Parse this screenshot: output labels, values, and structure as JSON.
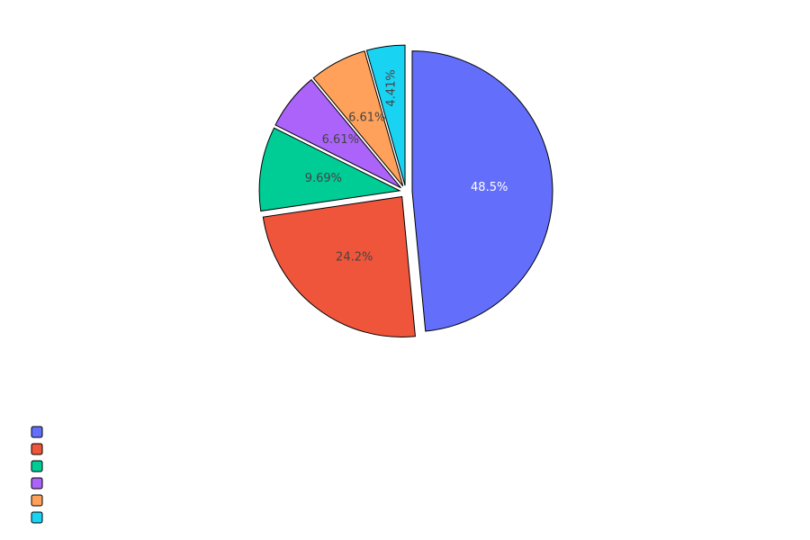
{
  "chart_data": {
    "type": "pie",
    "title": "",
    "direction": "clockwise",
    "start_angle_deg": 0,
    "slices": [
      {
        "name": "",
        "value": 48.5,
        "label": "48.5%",
        "color": "#636efa",
        "label_color": "#ffffff",
        "pulled": true
      },
      {
        "name": "",
        "value": 24.2,
        "label": "24.2%",
        "color": "#ef553b",
        "label_color": "#444444",
        "pulled": true
      },
      {
        "name": "",
        "value": 9.69,
        "label": "9.69%",
        "color": "#00cc96",
        "label_color": "#444444",
        "pulled": true
      },
      {
        "name": "",
        "value": 6.61,
        "label": "6.61%",
        "color": "#ab63fa",
        "label_color": "#444444",
        "pulled": true
      },
      {
        "name": "",
        "value": 6.61,
        "label": "6.61%",
        "color": "#ffa15a",
        "label_color": "#444444",
        "pulled": true
      },
      {
        "name": "",
        "value": 4.41,
        "label": "4.41%",
        "color": "#19d3f3",
        "label_color": "#444444",
        "pulled": true,
        "label_orientation": "radial"
      }
    ],
    "legend": {
      "placement": "bottom-left",
      "entries": [
        "",
        "",
        "",
        "",
        "",
        ""
      ]
    }
  }
}
